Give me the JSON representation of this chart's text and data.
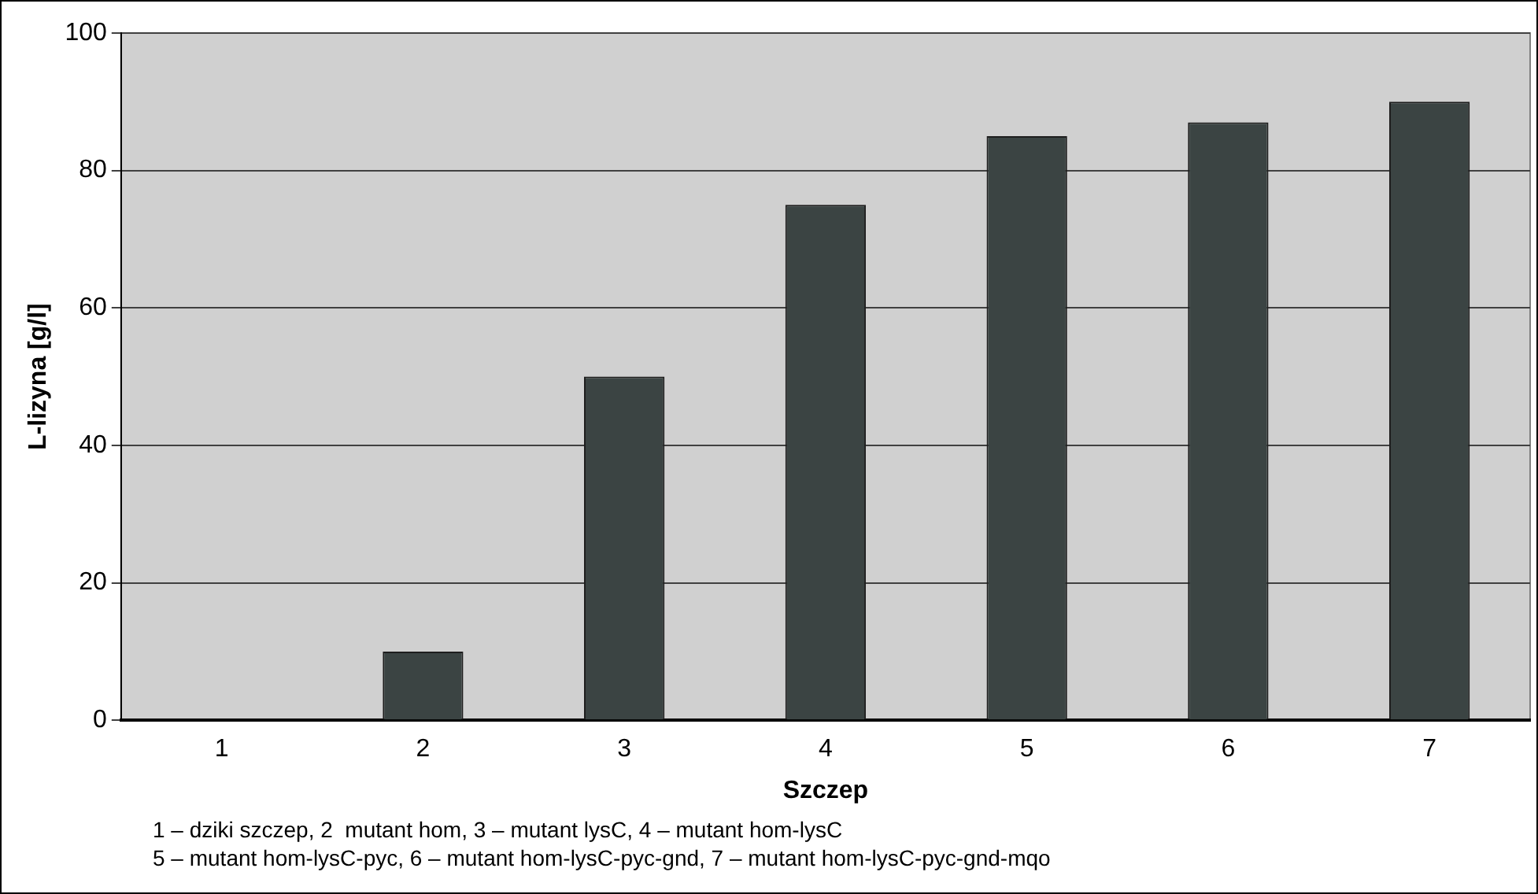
{
  "chart_data": {
    "type": "bar",
    "xlabel": "Szczep",
    "ylabel": "L-lizyna [g/l]",
    "categories": [
      "1",
      "2",
      "3",
      "4",
      "5",
      "6",
      "7"
    ],
    "values": [
      0,
      10,
      50,
      75,
      85,
      87,
      90
    ],
    "color": "#3b4443",
    "ylim": [
      0,
      100
    ],
    "yticks": [
      0,
      20,
      40,
      60,
      80,
      100
    ],
    "grid": "y",
    "legend": false,
    "annotations": [
      "1 – dziki szczep, 2  mutant hom, 3 – mutant lysC, 4 – mutant hom-lysC",
      "5 – mutant hom-lysC-pyc, 6 – mutant hom-lysC-pyc-gnd, 7 – mutant hom-lysC-pyc-gnd-mqo"
    ]
  }
}
